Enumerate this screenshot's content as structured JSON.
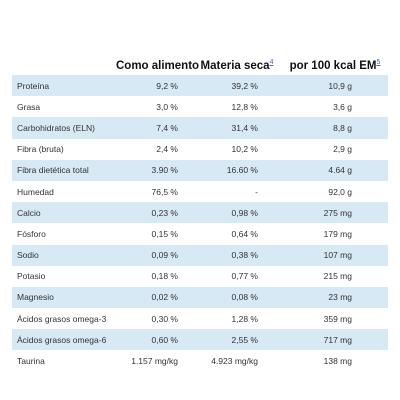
{
  "table": {
    "headers": {
      "empty": "",
      "col_a": "Como alimento",
      "col_b": "Materia seca",
      "col_b_note": "4",
      "col_c": "por 100 kcal EM",
      "col_c_note": "5"
    },
    "rows": [
      {
        "label": "Proteína",
        "a": "9,2 %",
        "b": "39,2 %",
        "c": "10,9 g"
      },
      {
        "label": "Grasa",
        "a": "3,0 %",
        "b": "12,8 %",
        "c": "3,6 g"
      },
      {
        "label": "Carbohidratos (ELN)",
        "a": "7,4 %",
        "b": "31,4 %",
        "c": "8,8 g"
      },
      {
        "label": "Fibra (bruta)",
        "a": "2,4 %",
        "b": "10,2 %",
        "c": "2,9 g"
      },
      {
        "label": "Fibra dietética total",
        "a": "3.90 %",
        "b": "16.60 %",
        "c": "4.64 g"
      },
      {
        "label": "Humedad",
        "a": "76,5 %",
        "b": "-",
        "c": "92,0 g"
      },
      {
        "label": "Calcio",
        "a": "0,23 %",
        "b": "0,98 %",
        "c": "275 mg"
      },
      {
        "label": "Fósforo",
        "a": "0,15 %",
        "b": "0,64 %",
        "c": "179 mg"
      },
      {
        "label": "Sodio",
        "a": "0,09 %",
        "b": "0,38 %",
        "c": "107 mg"
      },
      {
        "label": "Potasio",
        "a": "0,18 %",
        "b": "0,77 %",
        "c": "215 mg"
      },
      {
        "label": "Magnesio",
        "a": "0,02 %",
        "b": "0,08 %",
        "c": "23 mg"
      },
      {
        "label": "Ácidos grasos omega-3",
        "a": "0,30 %",
        "b": "1,28 %",
        "c": "359 mg"
      },
      {
        "label": "Ácidos grasos omega-6",
        "a": "0,60 %",
        "b": "2,55 %",
        "c": "717 mg"
      },
      {
        "label": "Taurina",
        "a": "1.157 mg/kg",
        "b": "4.923 mg/kg",
        "c": "138 mg"
      }
    ]
  },
  "colors": {
    "row_shade": "#d6e9f5",
    "text": "#333333",
    "header_text": "#111111",
    "note_link": "#3b6cb0"
  }
}
